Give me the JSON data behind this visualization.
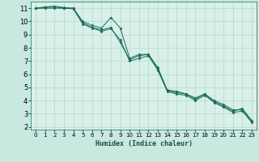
{
  "title": "",
  "xlabel": "Humidex (Indice chaleur)",
  "ylabel": "",
  "background_color": "#c8e8e0",
  "plot_bg_color": "#d8f0e8",
  "grid_color": "#b0d8d0",
  "line_color": "#1a6b5a",
  "xlim": [
    -0.5,
    23.5
  ],
  "ylim": [
    1.8,
    11.5
  ],
  "xticks": [
    0,
    1,
    2,
    3,
    4,
    5,
    6,
    7,
    8,
    9,
    10,
    11,
    12,
    13,
    14,
    15,
    16,
    17,
    18,
    19,
    20,
    21,
    22,
    23
  ],
  "yticks": [
    2,
    3,
    4,
    5,
    6,
    7,
    8,
    9,
    10,
    11
  ],
  "series": [
    [
      11.0,
      11.1,
      11.15,
      11.05,
      11.0,
      10.0,
      9.7,
      9.5,
      10.3,
      9.5,
      7.2,
      7.5,
      7.5,
      6.5,
      4.8,
      4.7,
      4.5,
      4.2,
      4.5,
      4.0,
      3.7,
      3.3,
      3.3,
      2.4
    ],
    [
      11.0,
      11.0,
      11.0,
      11.0,
      11.0,
      9.9,
      9.55,
      9.35,
      9.55,
      8.4,
      7.1,
      7.4,
      7.5,
      6.4,
      4.75,
      4.6,
      4.5,
      4.1,
      4.5,
      3.9,
      3.6,
      3.2,
      3.4,
      2.5
    ],
    [
      11.0,
      11.05,
      11.1,
      11.0,
      10.95,
      9.8,
      9.5,
      9.25,
      9.45,
      8.6,
      7.0,
      7.2,
      7.4,
      6.3,
      4.7,
      4.5,
      4.4,
      4.0,
      4.4,
      3.85,
      3.5,
      3.1,
      3.2,
      2.35
    ]
  ]
}
